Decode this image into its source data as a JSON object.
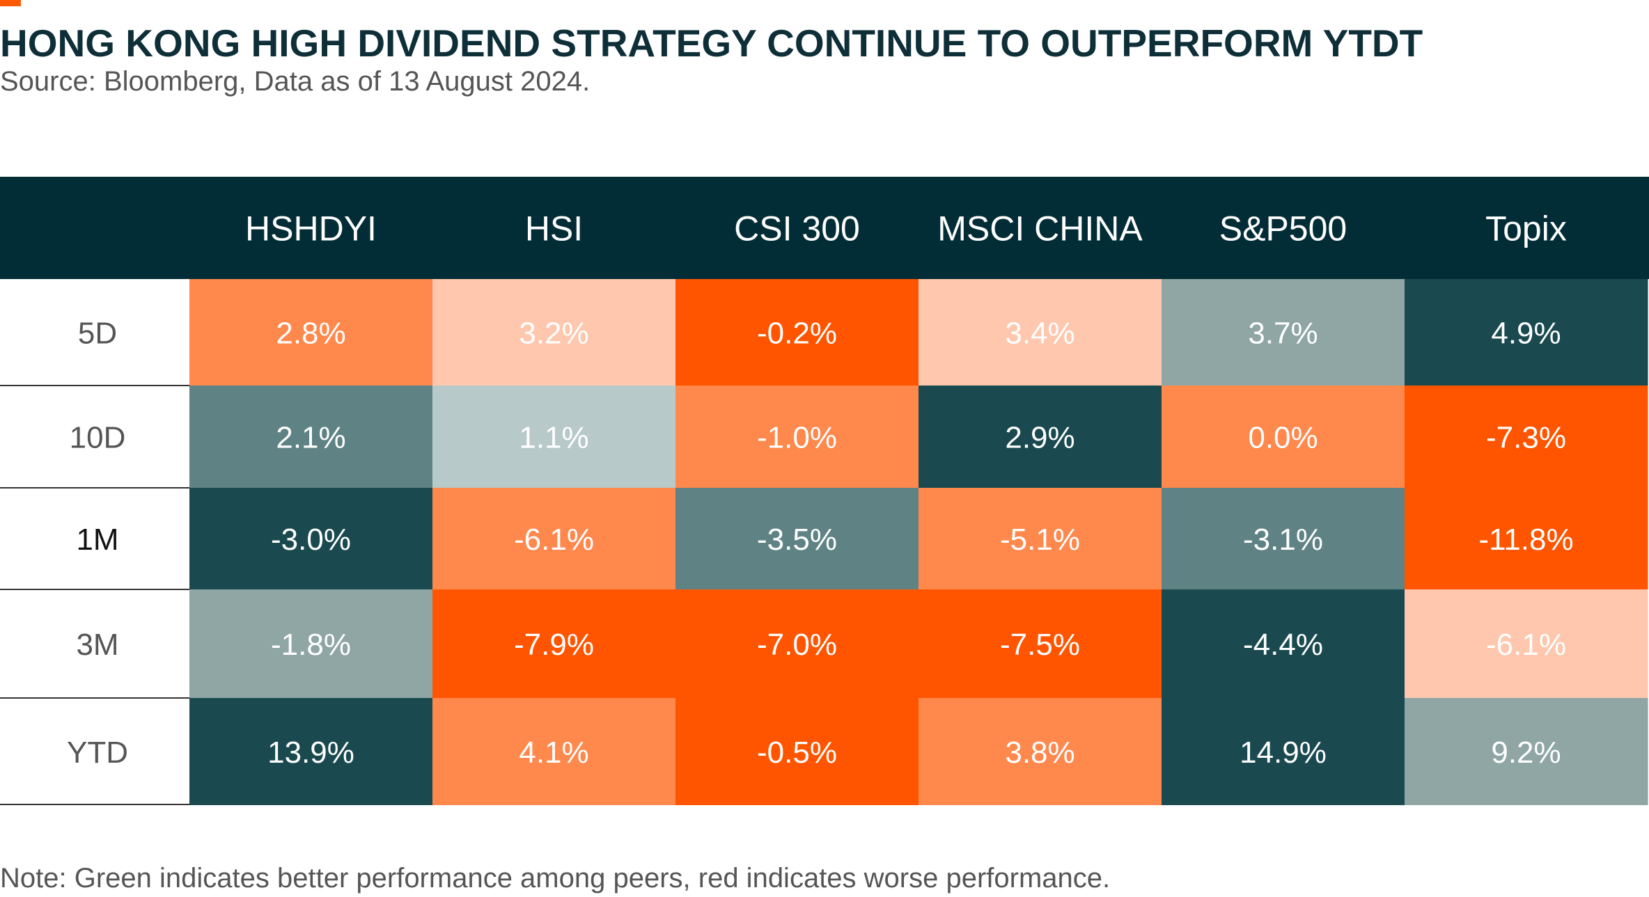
{
  "title": "HONG KONG HIGH DIVIDEND STRATEGY CONTINUE TO OUTPERFORM YTDT",
  "subtitle": "Source: Bloomberg, Data as of 13 August 2024.",
  "note": "Note: Green indicates better performance among peers, red indicates worse performance.",
  "colors": {
    "accent": "#ff5a00",
    "header_bg": "#032d36",
    "header_text": "#ffffff",
    "title": "#0e2f38",
    "level_1": "#1a4a50",
    "level_2": "#5f8384",
    "level_3": "#8fa6a5",
    "level_4": "#b8c9ca",
    "level_5": "#ffc7ae",
    "level_6": "#ff884d",
    "level_7": "#ff5500"
  },
  "chart_data": {
    "type": "heatmap",
    "title": "HONG KONG HIGH DIVIDEND STRATEGY CONTINUE TO OUTPERFORM YTDT",
    "subtitle": "Source: Bloomberg, Data as of 13 August 2024.",
    "columns": [
      "HSHDYI",
      "HSI",
      "CSI 300",
      "MSCI CHINA",
      "S&P500",
      "Topix"
    ],
    "rows": [
      "5D",
      "10D",
      "1M",
      "3M",
      "YTD"
    ],
    "values": [
      [
        2.8,
        3.2,
        -0.2,
        3.4,
        3.7,
        4.9
      ],
      [
        2.1,
        1.1,
        -1.0,
        2.9,
        0.0,
        -7.3
      ],
      [
        -3.0,
        -6.1,
        -3.5,
        -5.1,
        -3.1,
        -11.8
      ],
      [
        -1.8,
        -7.9,
        -7.0,
        -7.5,
        -4.4,
        -6.1
      ],
      [
        13.9,
        4.1,
        -0.5,
        3.8,
        14.9,
        9.2
      ]
    ],
    "labels": [
      [
        "2.8%",
        "3.2%",
        "-0.2%",
        "3.4%",
        "3.7%",
        "4.9%"
      ],
      [
        "2.1%",
        "1.1%",
        "-1.0%",
        "2.9%",
        "0.0%",
        "-7.3%"
      ],
      [
        "-3.0%",
        "-6.1%",
        "-3.5%",
        "-5.1%",
        "-3.1%",
        "-11.8%"
      ],
      [
        "-1.8%",
        "-7.9%",
        "-7.0%",
        "-7.5%",
        "-4.4%",
        "-6.1%"
      ],
      [
        "13.9%",
        "4.1%",
        "-0.5%",
        "3.8%",
        "14.9%",
        "9.2%"
      ]
    ],
    "color_levels": [
      [
        "level_6",
        "level_5",
        "level_7",
        "level_5",
        "level_3",
        "level_1"
      ],
      [
        "level_2",
        "level_4",
        "level_6",
        "level_1",
        "level_6",
        "level_7"
      ],
      [
        "level_1",
        "level_6",
        "level_2",
        "level_6",
        "level_2",
        "level_7"
      ],
      [
        "level_3",
        "level_7",
        "level_7",
        "level_7",
        "level_1",
        "level_5"
      ],
      [
        "level_1",
        "level_6",
        "level_7",
        "level_6",
        "level_1",
        "level_3"
      ]
    ],
    "xlabel": "",
    "ylabel": "",
    "legend": "none",
    "grid": false
  }
}
